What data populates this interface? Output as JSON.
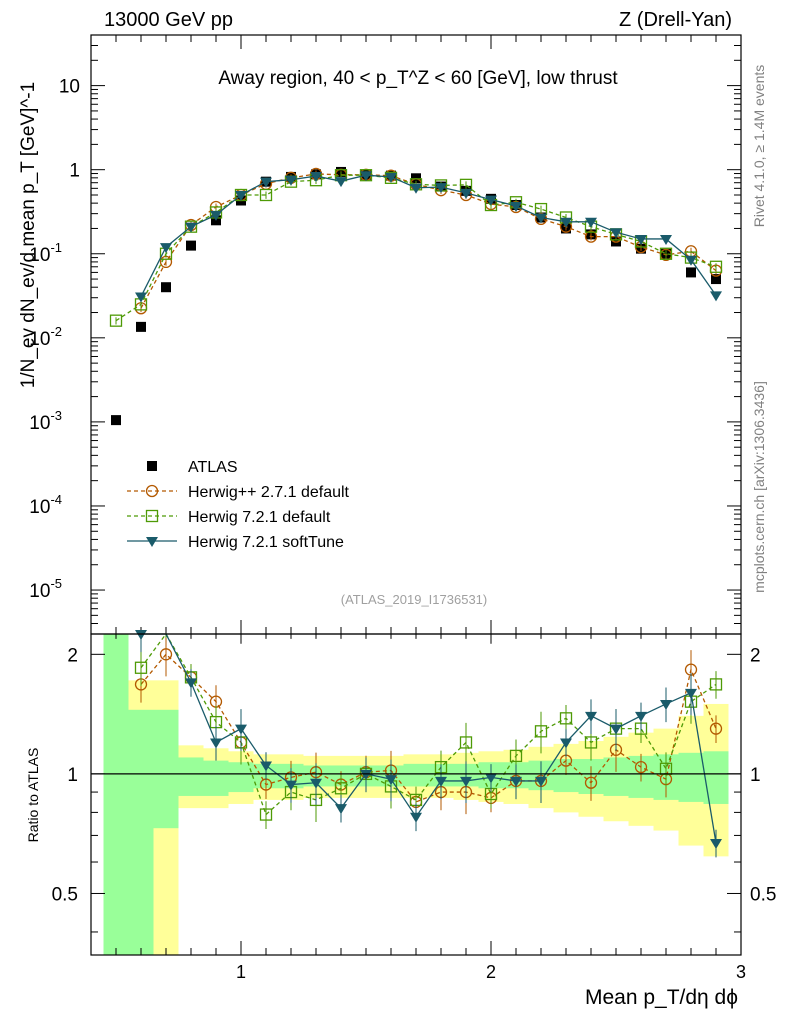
{
  "header": {
    "left": "13000 GeV pp",
    "right": "Z (Drell-Yan)"
  },
  "side_labels": {
    "rivet": "Rivet 4.1.0, ≥ 1.4M events",
    "mcplots": "mcplots.cern.ch [arXiv:1306.3436]"
  },
  "chart_data": {
    "type": "scatter",
    "title": "Away region, 40 < p_T^Z < 60 [GeV], low thrust",
    "watermark": "(ATLAS_2019_I1736531)",
    "xlabel": "Mean p_T/dη dϕ",
    "ylabel": "1/N_ev dN_ev/d mean p_T [GeV]^-1",
    "ratio_ylabel": "Ratio to ATLAS",
    "xlim": [
      0.4,
      3.0
    ],
    "ylim": [
      3e-06,
      40
    ],
    "ratio_ylim": [
      0.35,
      2.25
    ],
    "x_ticks": [
      "1",
      "2",
      "3"
    ],
    "y_ticks": [
      "10^-5",
      "10^-4",
      "10^-3",
      "10^-2",
      "10^-1",
      "1",
      "10"
    ],
    "ratio_ticks": [
      "0.5",
      "1",
      "2"
    ],
    "x": [
      0.5,
      0.6,
      0.7,
      0.8,
      0.9,
      1.0,
      1.1,
      1.2,
      1.3,
      1.4,
      1.5,
      1.6,
      1.7,
      1.8,
      1.9,
      2.0,
      2.1,
      2.2,
      2.3,
      2.4,
      2.5,
      2.6,
      2.7,
      2.8,
      2.9
    ],
    "series": [
      {
        "name": "ATLAS",
        "style": "data",
        "color": "#000000",
        "values": [
          0.00105,
          0.0135,
          0.04,
          0.125,
          0.25,
          0.43,
          0.72,
          0.82,
          0.88,
          0.94,
          0.87,
          0.85,
          0.79,
          0.63,
          0.56,
          0.45,
          0.38,
          0.27,
          0.2,
          0.17,
          0.14,
          0.115,
          0.1,
          0.06,
          0.05
        ]
      },
      {
        "name": "Herwig++ 2.7.1 default",
        "style": "circle-dashed",
        "color": "#b35900",
        "values": [
          null,
          0.0225,
          0.08,
          0.22,
          0.36,
          0.5,
          0.68,
          0.8,
          0.89,
          0.87,
          0.87,
          0.85,
          0.67,
          0.57,
          0.5,
          0.39,
          0.36,
          0.26,
          0.21,
          0.16,
          0.16,
          0.12,
          0.097,
          0.107,
          0.063
        ],
        "ratio": [
          null,
          1.68,
          2.0,
          1.75,
          1.52,
          1.2,
          0.94,
          0.98,
          1.01,
          0.94,
          1.01,
          1.02,
          0.85,
          0.9,
          0.9,
          0.87,
          0.96,
          0.96,
          1.08,
          0.95,
          1.15,
          1.04,
          0.97,
          1.83,
          1.3
        ]
      },
      {
        "name": "Herwig 7.2.1 default",
        "style": "square-dashed",
        "color": "#4e9a06",
        "values": [
          0.016,
          0.025,
          0.1,
          0.21,
          0.31,
          0.5,
          0.5,
          0.72,
          0.75,
          0.86,
          0.86,
          0.8,
          0.67,
          0.65,
          0.66,
          0.38,
          0.41,
          0.34,
          0.27,
          0.21,
          0.17,
          0.14,
          0.1,
          0.09,
          0.07
        ],
        "ratio": [
          null,
          1.85,
          2.5,
          1.75,
          1.35,
          1.2,
          0.79,
          0.9,
          0.86,
          0.92,
          1.0,
          0.93,
          0.86,
          1.04,
          1.2,
          0.89,
          1.11,
          1.28,
          1.38,
          1.2,
          1.3,
          1.3,
          1.03,
          1.52,
          1.68
        ]
      },
      {
        "name": "Herwig 7.2.1 softTune",
        "style": "triangle-solid",
        "color": "#1a5b6a",
        "values": [
          null,
          0.031,
          0.12,
          0.21,
          0.29,
          0.5,
          0.72,
          0.76,
          0.84,
          0.73,
          0.86,
          0.82,
          0.61,
          0.62,
          0.53,
          0.44,
          0.37,
          0.27,
          0.24,
          0.24,
          0.18,
          0.15,
          0.15,
          0.085,
          0.032
        ],
        "ratio": [
          null,
          2.25,
          2.6,
          1.7,
          1.2,
          1.3,
          1.05,
          0.94,
          0.95,
          0.82,
          1.0,
          0.97,
          0.78,
          0.96,
          0.96,
          0.98,
          0.96,
          0.96,
          1.2,
          1.4,
          1.3,
          1.4,
          1.5,
          1.6,
          0.67
        ]
      }
    ],
    "ratio_bands": {
      "green_lo": [
        0.25,
        0.25,
        0.73,
        0.88,
        0.88,
        0.9,
        0.92,
        0.92,
        0.93,
        0.93,
        0.93,
        0.93,
        0.93,
        0.93,
        0.93,
        0.92,
        0.92,
        0.91,
        0.9,
        0.89,
        0.88,
        0.87,
        0.86,
        0.85,
        0.84
      ],
      "green_hi": [
        2.25,
        1.45,
        1.45,
        1.1,
        1.08,
        1.07,
        1.06,
        1.06,
        1.05,
        1.05,
        1.05,
        1.05,
        1.06,
        1.06,
        1.06,
        1.07,
        1.07,
        1.08,
        1.09,
        1.09,
        1.1,
        1.11,
        1.12,
        1.13,
        1.14
      ],
      "yellow_lo": [
        0.25,
        0.25,
        0.25,
        0.82,
        0.82,
        0.84,
        0.86,
        0.86,
        0.87,
        0.87,
        0.87,
        0.87,
        0.87,
        0.87,
        0.86,
        0.85,
        0.84,
        0.82,
        0.8,
        0.78,
        0.76,
        0.74,
        0.72,
        0.66,
        0.62
      ],
      "yellow_hi": [
        2.25,
        1.72,
        1.72,
        1.18,
        1.16,
        1.14,
        1.12,
        1.12,
        1.11,
        1.11,
        1.11,
        1.11,
        1.12,
        1.12,
        1.13,
        1.14,
        1.15,
        1.17,
        1.19,
        1.21,
        1.24,
        1.27,
        1.3,
        1.4,
        1.5
      ]
    }
  }
}
